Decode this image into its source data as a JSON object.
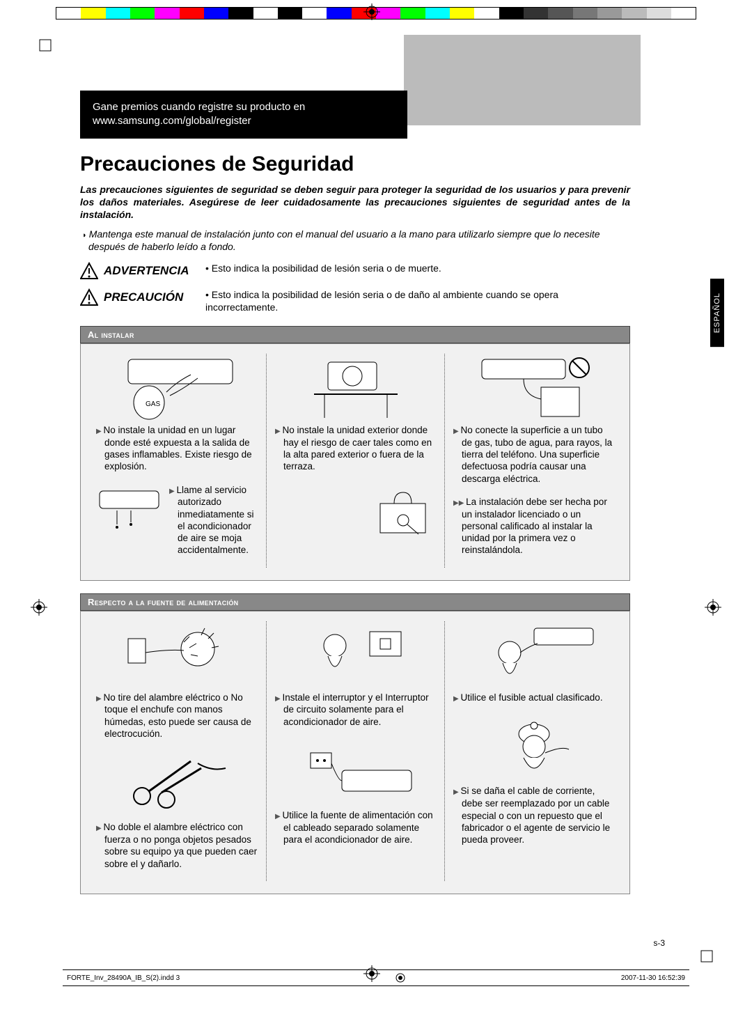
{
  "colorbar": [
    "#fff",
    "#ffff00",
    "#00ffff",
    "#00ff00",
    "#ff00ff",
    "#ff0000",
    "#0000ff",
    "#000",
    "#fff",
    "#000",
    "#fff",
    "#0000ff",
    "#ff0000",
    "#ff00ff",
    "#00ff00",
    "#00ffff",
    "#ffff00",
    "#fff",
    "#000",
    "#333",
    "#555",
    "#777",
    "#999",
    "#bbb",
    "#ddd",
    "#fff"
  ],
  "banner_line1": "Gane premios cuando registre su producto en",
  "banner_line2": "www.samsung.com/global/register",
  "title": "Precauciones de Seguridad",
  "intro": "Las precauciones siguientes de seguridad se deben seguir para proteger la seguridad de los usuarios y para prevenir los daños materiales. Asegúrese de leer cuidadosamente las precauciones siguientes de seguridad antes de la instalación.",
  "note": "Mantenga este manual de instalación junto con el manual del usuario a la mano para utilizarlo siempre que lo necesite después de haberlo leído a fondo.",
  "warn1_head": "ADVERTENCIA",
  "warn1_text": "• Esto indica la posibilidad de lesión seria o de muerte.",
  "warn2_head": "PRECAUCIÓN",
  "warn2_text": "• Esto indica la posibilidad de lesión seria o de daño al ambiente cuando se opera incorrectamente.",
  "section1_title": "Al instalar",
  "section2_title": "Respecto a la fuente de alimentación",
  "s1": {
    "c1a": "No instale la unidad en un lugar donde esté expuesta a la salida de gases inflamables. Existe riesgo de explosión.",
    "c2a": "No instale la unidad exterior donde hay el riesgo de caer tales como en la alta pared exterior o fuera de la terraza.",
    "c3a": "No conecte la superficie a un tubo de gas, tubo de agua, para rayos, la tierra del teléfono. Una superficie defectuosa podría causar una descarga eléctrica.",
    "c1b": "Llame al servicio autorizado inmediatamente si el acondicionador de aire se moja accidentalmente.",
    "c3b": "La instalación debe ser hecha por un instalador licenciado o un personal calificado al instalar la unidad por la primera vez o reinstalándola."
  },
  "s2": {
    "c1a": "No tire del alambre eléctrico o No toque el enchufe con manos húmedas, esto puede ser causa de electrocución.",
    "c2a": "Instale el interruptor y el Interruptor de circuito solamente para el acondicionador de aire.",
    "c3a": "Utilice el fusible actual clasificado.",
    "c1b": "No doble el alambre eléctrico con fuerza o no ponga objetos pesados sobre su equipo ya que pueden caer sobre el y dañarlo.",
    "c2b": "Utilice la fuente de alimentación con el cableado separado solamente para el acondicionador de aire.",
    "c3b": "Si se daña el cable de corriente, debe ser reemplazado por un cable especial o con un repuesto que el fabricador o el agente de servicio le pueda proveer."
  },
  "sidetab": "ESPAÑOL",
  "page_number": "s-3",
  "footer_left": "FORTE_Inv_28490A_IB_S(2).indd   3",
  "footer_right": "2007-11-30   16:52:39"
}
